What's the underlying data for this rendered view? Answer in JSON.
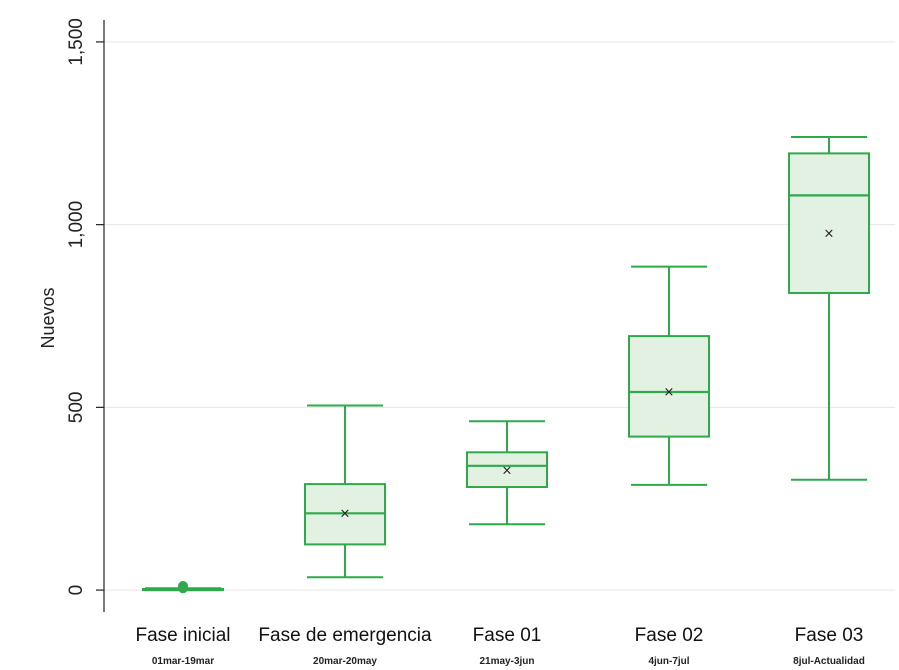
{
  "chart_data": {
    "type": "box",
    "ylabel": "Nuevos",
    "ylim": [
      -60,
      1560
    ],
    "yticks": [
      0,
      500,
      1000,
      1500
    ],
    "ytick_labels": [
      "0",
      "500",
      "1,000",
      "1,500"
    ],
    "grid": true,
    "colors": {
      "series": "#2eaa4a",
      "fill": "#e3f1e3"
    },
    "categories": [
      {
        "label": "Fase inicial",
        "sublabel": "01mar-19mar",
        "min": 0,
        "q1": 0,
        "median": 2,
        "q3": 3,
        "max": 5,
        "mean": 2,
        "outliers": [
          5,
          11
        ]
      },
      {
        "label": "Fase de emergencia",
        "sublabel": "20mar-20may",
        "min": 35,
        "q1": 125,
        "median": 210,
        "q3": 290,
        "max": 505,
        "mean": 212,
        "outliers": []
      },
      {
        "label": "Fase 01",
        "sublabel": "21may-3jun",
        "min": 180,
        "q1": 282,
        "median": 340,
        "q3": 377,
        "max": 462,
        "mean": 330,
        "outliers": []
      },
      {
        "label": "Fase 02",
        "sublabel": "4jun-7jul",
        "min": 288,
        "q1": 420,
        "median": 542,
        "q3": 695,
        "max": 885,
        "mean": 545,
        "outliers": []
      },
      {
        "label": "Fase 03",
        "sublabel": "8jul-Actualidad",
        "min": 302,
        "q1": 813,
        "median": 1080,
        "q3": 1195,
        "max": 1240,
        "mean": 978,
        "outliers": []
      }
    ]
  }
}
